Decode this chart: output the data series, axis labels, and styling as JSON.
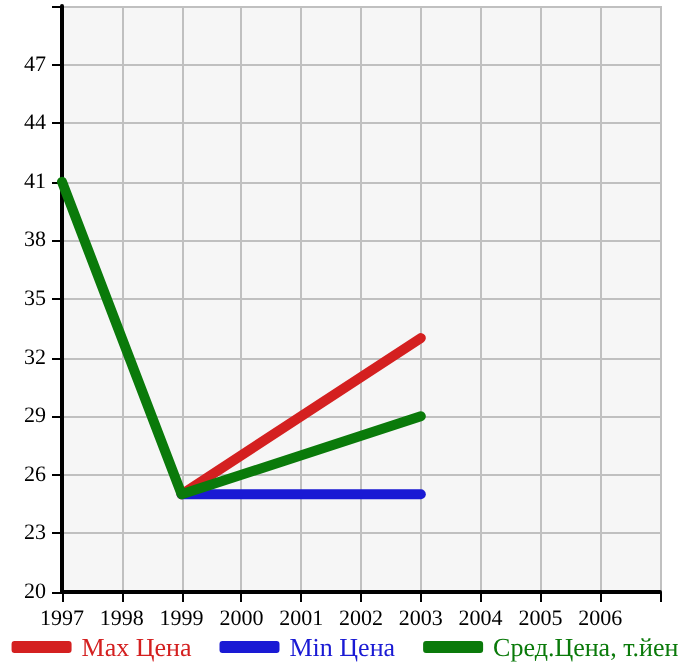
{
  "chart_data": {
    "type": "line",
    "x": [
      1997,
      1999,
      2003
    ],
    "series": [
      {
        "name": "Max Цена",
        "color": "#d42020",
        "values": [
          null,
          25,
          33
        ]
      },
      {
        "name": "Min Цена",
        "color": "#1a1ad4",
        "values": [
          null,
          25,
          25
        ]
      },
      {
        "name": "Сред.Цена, т.йен",
        "color": "#0a7a0a",
        "values": [
          41,
          25,
          29
        ]
      }
    ],
    "xlim": [
      1997,
      2007
    ],
    "xticks": [
      1997,
      1998,
      1999,
      2000,
      2001,
      2002,
      2003,
      2004,
      2005,
      2006,
      {
        "value": 2007,
        "label": null
      }
    ],
    "ylim": [
      20,
      50
    ],
    "yticks": [
      20,
      23,
      26,
      29,
      32,
      35,
      38,
      41,
      44,
      47,
      {
        "value": 50,
        "label": null
      }
    ],
    "grid": true,
    "legend": "bottom",
    "marker": "none",
    "line_style": "solid"
  }
}
